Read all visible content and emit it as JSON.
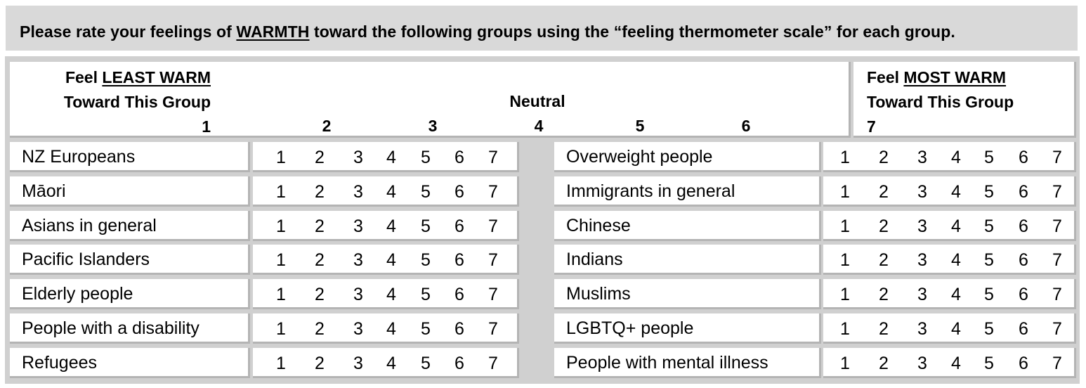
{
  "instruction": {
    "prefix": "Please rate your feelings of ",
    "keyword": "WARMTH",
    "suffix": " toward the following groups using the “feeling thermometer scale” for each group."
  },
  "scale_header": {
    "least": {
      "line1_prefix": "Feel ",
      "line1_underlined": "LEAST WARM",
      "line2": "Toward This Group",
      "number": "1"
    },
    "middle": {
      "label": "Neutral",
      "numbers": [
        "2",
        "3",
        "4",
        "5",
        "6"
      ]
    },
    "most": {
      "line1_prefix": "Feel ",
      "line1_underlined": "MOST WARM",
      "line2": "Toward This Group",
      "number": "7"
    }
  },
  "scale_options": [
    "1",
    "2",
    "3",
    "4",
    "5",
    "6",
    "7"
  ],
  "left_groups": [
    "NZ Europeans",
    "Māori",
    "Asians in general",
    "Pacific Islanders",
    "Elderly people",
    "People with a disability",
    "Refugees"
  ],
  "right_groups": [
    "Overweight people",
    "Immigrants in general",
    "Chinese",
    "Indians",
    "Muslims",
    "LGBTQ+ people",
    "People with mental illness"
  ]
}
